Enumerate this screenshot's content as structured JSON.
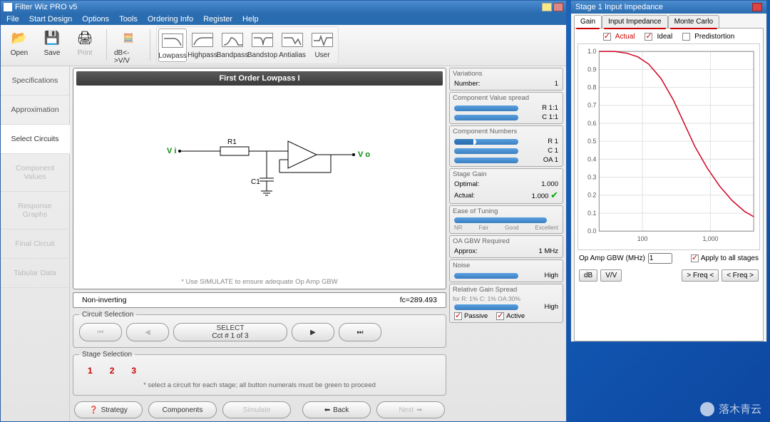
{
  "app": {
    "title": "Filter Wiz PRO v5"
  },
  "menu": [
    "File",
    "Start Design",
    "Options",
    "Tools",
    "Ordering Info",
    "Register",
    "Help"
  ],
  "toolbar_file": [
    {
      "label": "Open",
      "icon": "📂",
      "name": "open-button"
    },
    {
      "label": "Save",
      "icon": "💾",
      "name": "save-button"
    },
    {
      "label": "Print",
      "icon": "🖨",
      "name": "print-button",
      "disabled": true
    }
  ],
  "toolbar_db": {
    "label": "dB<->V/V",
    "name": "db-toggle-button"
  },
  "toolbar_filters": [
    {
      "label": "Lowpass",
      "name": "lowpass-button",
      "active": true
    },
    {
      "label": "Highpass",
      "name": "highpass-button"
    },
    {
      "label": "Bandpass",
      "name": "bandpass-button"
    },
    {
      "label": "Bandstop",
      "name": "bandstop-button"
    },
    {
      "label": "Antialias",
      "name": "antialias-button"
    },
    {
      "label": "User",
      "name": "user-button"
    }
  ],
  "side_nav": [
    {
      "label": "Specifications"
    },
    {
      "label": "Approximation"
    },
    {
      "label": "Select Circuits",
      "active": true
    },
    {
      "label": "Component Values",
      "disabled": true
    },
    {
      "label": "Response Graphs",
      "disabled": true
    },
    {
      "label": "Final Circuit",
      "disabled": true
    },
    {
      "label": "Tabular Data",
      "disabled": true
    }
  ],
  "circuit": {
    "title": "First Order Lowpass I",
    "vin": "V i",
    "vout": "V o",
    "r_label": "R1",
    "c_label": "C1",
    "note": "* Use SIMULATE to ensure adequate Op Amp GBW",
    "topology": "Non-inverting",
    "fc_label": "fc=289.493"
  },
  "circuit_selection": {
    "legend": "Circuit Selection",
    "select_label": "SELECT",
    "cct_label": "Cct # 1 of 3"
  },
  "stage_selection": {
    "legend": "Stage Selection",
    "stages": [
      {
        "n": "1",
        "color": "#c00"
      },
      {
        "n": "2",
        "color": "#c00"
      },
      {
        "n": "3",
        "color": "#c00"
      }
    ],
    "note": "* select a circuit for each stage; all button numerals must be green to proceed"
  },
  "bottom": {
    "strategy": "Strategy",
    "components": "Components",
    "simulate": "Simulate",
    "back": "Back",
    "next": "Next"
  },
  "right_panels": {
    "variations": {
      "hdr": "Variations",
      "number_label": "Number:",
      "number": "1"
    },
    "cvs": {
      "hdr": "Component Value spread",
      "rows": [
        {
          "k": "R",
          "v": "1:1"
        },
        {
          "k": "C",
          "v": "1:1"
        }
      ]
    },
    "cn": {
      "hdr": "Component Numbers",
      "rows": [
        {
          "k": "R",
          "v": "1",
          "partial": true
        },
        {
          "k": "C",
          "v": "1"
        },
        {
          "k": "OA",
          "v": "1"
        }
      ]
    },
    "gain": {
      "hdr": "Stage Gain",
      "optimal_l": "Optimal:",
      "optimal": "1.000",
      "actual_l": "Actual:",
      "actual": "1.000"
    },
    "ease": {
      "hdr": "Ease of Tuning",
      "scale": [
        "NR",
        "Fair",
        "Good",
        "Excellent"
      ]
    },
    "gbw": {
      "hdr": "OA GBW Required",
      "approx_l": "Approx:",
      "approx": "1 MHz"
    },
    "noise": {
      "hdr": "Noise",
      "level": "High"
    },
    "rgs": {
      "hdr": "Relative Gain Spread",
      "sub": "for R: 1% C: 1% OA:30%",
      "level": "High",
      "passive": "Passive",
      "active": "Active"
    }
  },
  "sec_window": {
    "title": "Stage 1 Input Impedance",
    "tabs": [
      {
        "label": "Gain",
        "active": true,
        "underline": true
      },
      {
        "label": "Input Impedance",
        "underline": true
      },
      {
        "label": "Monte Carlo",
        "underline": true
      }
    ],
    "legend": {
      "actual": "Actual",
      "ideal": "Ideal",
      "pred": "Predistortion"
    },
    "chart": {
      "y_ticks": [
        0.0,
        0.1,
        0.2,
        0.3,
        0.4,
        0.5,
        0.6,
        0.7,
        0.8,
        0.9,
        1.0
      ],
      "x_ticks": [
        {
          "pos": 0.28,
          "label": "100"
        },
        {
          "pos": 0.72,
          "label": "1,000"
        }
      ],
      "line_color": "#d00020",
      "grid_color": "#e0e0e0",
      "curve": [
        [
          0,
          1.0
        ],
        [
          0.1,
          1.0
        ],
        [
          0.18,
          0.99
        ],
        [
          0.25,
          0.97
        ],
        [
          0.32,
          0.93
        ],
        [
          0.4,
          0.85
        ],
        [
          0.48,
          0.73
        ],
        [
          0.55,
          0.6
        ],
        [
          0.62,
          0.47
        ],
        [
          0.7,
          0.35
        ],
        [
          0.78,
          0.25
        ],
        [
          0.86,
          0.17
        ],
        [
          0.94,
          0.11
        ],
        [
          1.0,
          0.08
        ]
      ]
    },
    "controls": {
      "gbw_label": "Op Amp GBW (MHz)",
      "gbw_value": "1",
      "apply": "Apply to all stages",
      "db": "dB",
      "vv": "V/V",
      "freq_in": "> Freq <",
      "freq_out": "< Freq >"
    }
  },
  "watermark": "落木青云"
}
